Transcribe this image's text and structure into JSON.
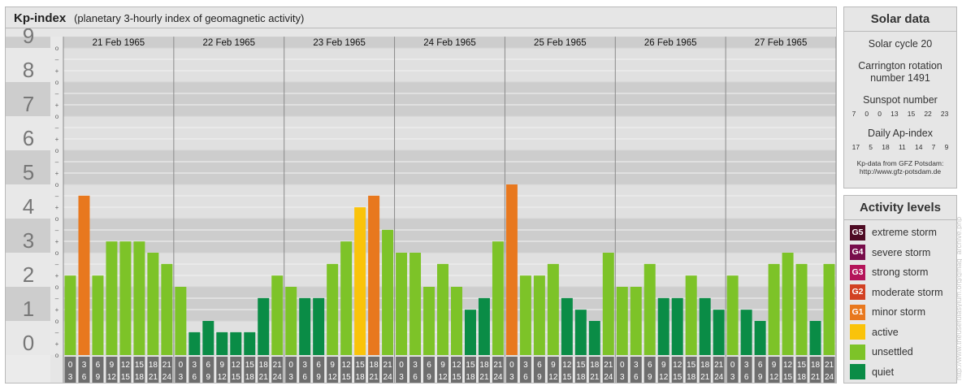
{
  "title": "Kp-index",
  "subtitle": "(planetary 3-hourly index of geomagnetic activity)",
  "chart_data": {
    "type": "bar",
    "days": [
      "21 Feb 1965",
      "22 Feb 1965",
      "23 Feb 1965",
      "24 Feb 1965",
      "25 Feb 1965",
      "26 Feb 1965",
      "27 Feb 1965"
    ],
    "interval_starts": [
      "0",
      "3",
      "6",
      "9",
      "12",
      "15",
      "18",
      "21"
    ],
    "interval_ends": [
      "3",
      "6",
      "9",
      "12",
      "15",
      "18",
      "21",
      "24"
    ],
    "y_ticks": [
      "0",
      "1",
      "2",
      "3",
      "4",
      "5",
      "6",
      "7",
      "8",
      "9"
    ],
    "y_minor_marks": [
      "o",
      "+",
      "–"
    ],
    "ylim": [
      0,
      9.33
    ],
    "values": [
      2.33,
      4.67,
      2.33,
      3.33,
      3.33,
      3.33,
      3.0,
      2.67,
      2.0,
      0.67,
      1.0,
      0.67,
      0.67,
      0.67,
      1.67,
      2.33,
      2.0,
      1.67,
      1.67,
      2.67,
      3.33,
      4.33,
      4.67,
      3.67,
      3.0,
      3.0,
      2.0,
      2.67,
      2.0,
      1.33,
      1.67,
      3.33,
      5.0,
      2.33,
      2.33,
      2.67,
      1.67,
      1.33,
      1.0,
      3.0,
      2.0,
      2.0,
      2.67,
      1.67,
      1.67,
      2.33,
      1.67,
      1.33,
      2.33,
      1.33,
      1.0,
      2.67,
      3.0,
      2.67,
      1.0,
      2.67
    ]
  },
  "solar_data": {
    "title": "Solar data",
    "cycle": "Solar cycle 20",
    "carrington_line1": "Carrington rotation",
    "carrington_line2": "number 1491",
    "sunspot_label": "Sunspot number",
    "sunspot_values": [
      "7",
      "0",
      "0",
      "13",
      "15",
      "22",
      "23"
    ],
    "ap_label": "Daily Ap-index",
    "ap_values": [
      "17",
      "5",
      "18",
      "11",
      "14",
      "7",
      "9"
    ],
    "credit_line1": "Kp-data from GFZ Potsdam:",
    "credit_line2": "http://www.gfz-potsdam.de"
  },
  "activity_levels": {
    "title": "Activity levels",
    "items": [
      {
        "badge": "G5",
        "label": "extreme storm",
        "color": "#4d0a23"
      },
      {
        "badge": "G4",
        "label": "severe storm",
        "color": "#780d4b"
      },
      {
        "badge": "G3",
        "label": "strong storm",
        "color": "#b4145a"
      },
      {
        "badge": "G2",
        "label": "moderate storm",
        "color": "#d24123"
      },
      {
        "badge": "G1",
        "label": "minor storm",
        "color": "#e8781e"
      },
      {
        "badge": "",
        "label": "active",
        "color": "#fac30a"
      },
      {
        "badge": "",
        "label": "unsettled",
        "color": "#7dc328"
      },
      {
        "badge": "",
        "label": "quiet",
        "color": "#0a8c46"
      }
    ]
  },
  "colors": {
    "quiet": "#0a8c46",
    "unsettled": "#7dc328",
    "active": "#fac30a",
    "minor_storm": "#e8781e",
    "band_dark": "#cdcdcd",
    "band_light": "#e0e0e0",
    "label_bg": "#6e6e6e"
  },
  "watermark": "http://www.theusefulasylum.org/gmag_archive.php"
}
